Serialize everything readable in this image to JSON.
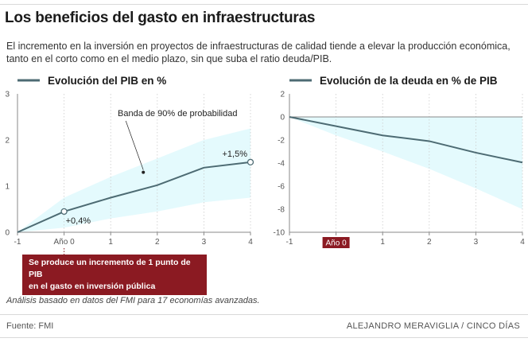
{
  "header": {
    "title": "Los beneficios del gasto en infraestructuras",
    "subtitle": "El incremento en la inversión en proyectos de infraestructuras de calidad tiende a elevar la producción económica, tanto en el corto como en el medio plazo, sin que suba el ratio deuda/PIB."
  },
  "colors": {
    "line": "#4d6b73",
    "band": "#e4fafd",
    "axis": "#888888",
    "grid": "#cccccc",
    "callout_bg": "#8b1a22",
    "callout_text": "#ffffff"
  },
  "chart_data": [
    {
      "type": "line",
      "title": "Evolución del PIB en %",
      "x": [
        -1,
        0,
        1,
        2,
        3,
        4
      ],
      "x_tick_labels": [
        "-1",
        "Año 0",
        "1",
        "2",
        "3",
        "4"
      ],
      "xlim": [
        -1,
        4
      ],
      "ylim": [
        0,
        3
      ],
      "y_ticks": [
        0,
        1,
        2,
        3
      ],
      "series": [
        {
          "name": "Evolución del PIB en %",
          "values": [
            0,
            0.45,
            0.75,
            1.02,
            1.4,
            1.52
          ]
        }
      ],
      "band": {
        "name": "Banda de 90% de probabilidad",
        "lower": [
          0,
          0.1,
          0.3,
          0.45,
          0.65,
          0.75
        ],
        "upper": [
          0,
          0.75,
          1.2,
          1.6,
          2.0,
          2.25
        ]
      },
      "markers": [
        {
          "x": 0,
          "y": 0.45,
          "label": "+0,4%"
        },
        {
          "x": 4,
          "y": 1.52,
          "label": "+1,5%"
        }
      ],
      "annotations": [
        {
          "text": "Banda de 90% de probabilidad",
          "x": 1.7,
          "y": 1.3
        }
      ]
    },
    {
      "type": "line",
      "title": "Evolución de la deuda en % de PIB",
      "x": [
        -1,
        0,
        1,
        2,
        3,
        4
      ],
      "x_tick_labels": [
        "-1",
        "Año 0",
        "1",
        "2",
        "3",
        "4"
      ],
      "xlim": [
        -1,
        4
      ],
      "ylim": [
        -10,
        2
      ],
      "y_ticks": [
        2,
        0,
        -2,
        -4,
        -6,
        -8,
        -10
      ],
      "series": [
        {
          "name": "Evolución de la deuda en % de PIB",
          "values": [
            0,
            -0.8,
            -1.6,
            -2.1,
            -3.1,
            -3.95
          ]
        }
      ],
      "band": {
        "name": "Banda de 90% de probabilidad",
        "lower": [
          0,
          -1.6,
          -3.0,
          -4.5,
          -6.2,
          -8.0
        ],
        "upper": [
          0,
          0,
          0,
          0,
          0,
          0
        ]
      }
    }
  ],
  "callout": {
    "line1": "Se produce un incremento de 1 punto de PIB",
    "line2": "en el gasto en inversión pública"
  },
  "note": "Análisis basado en datos del FMI para 17 economías avanzadas.",
  "footer": {
    "source": "Fuente: FMI",
    "credit": "ALEJANDRO MERAVIGLIA / CINCO DÍAS"
  }
}
